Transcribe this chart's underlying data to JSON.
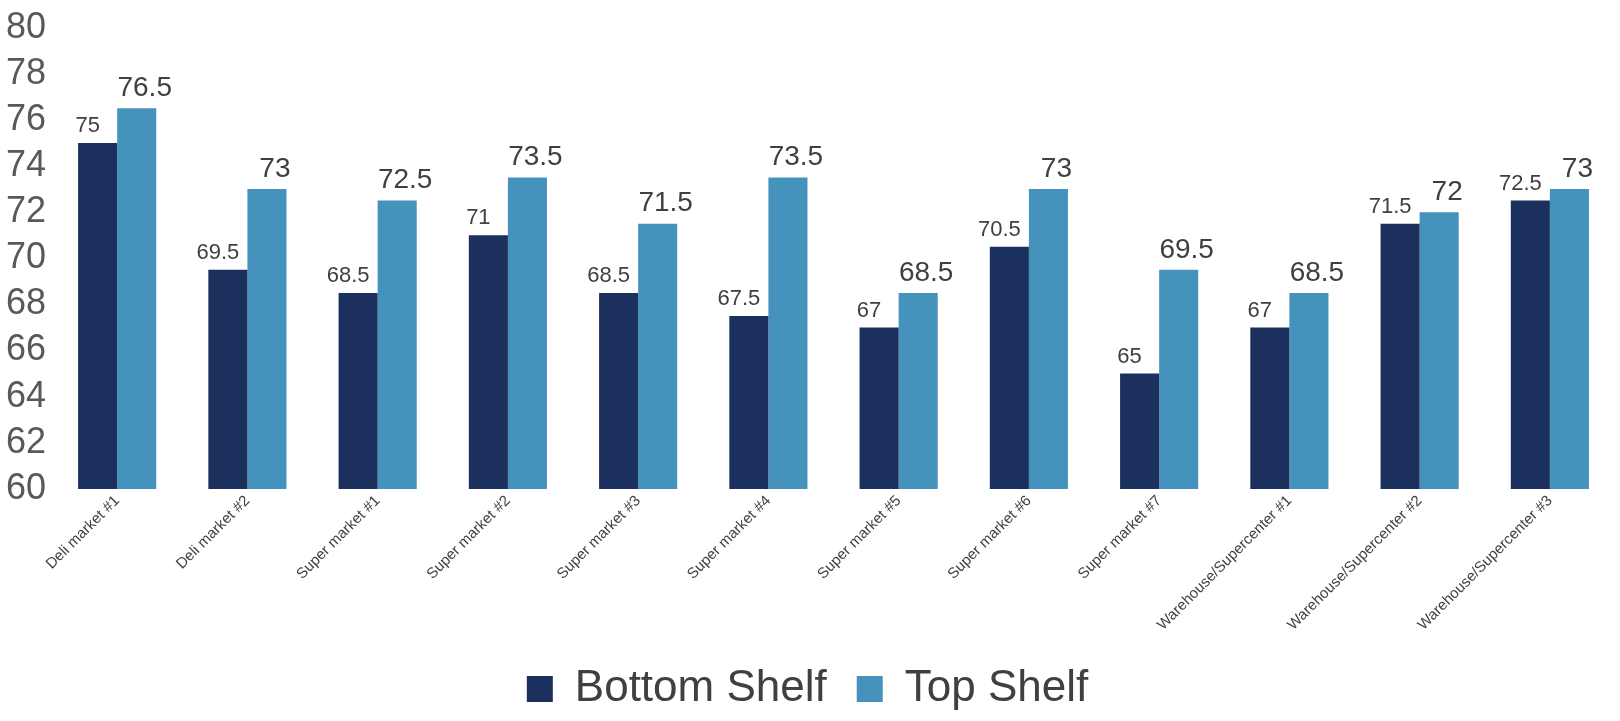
{
  "chart_data": {
    "type": "bar",
    "categories": [
      "Deli market #1",
      "Deli market #2",
      "Super market #1",
      "Super market #2",
      "Super market #3",
      "Super market #4",
      "Super market #5",
      "Super market #6",
      "Super market #7",
      "Warehouse/Supercenter #1",
      "Warehouse/Supercenter #2",
      "Warehouse/Supercenter #3"
    ],
    "series": [
      {
        "name": "Bottom Shelf",
        "color": "#1b305c",
        "values": [
          75,
          69.5,
          68.5,
          71,
          68.5,
          67.5,
          67,
          70.5,
          65,
          67,
          71.5,
          72.5
        ]
      },
      {
        "name": "Top Shelf",
        "color": "#4592bc",
        "values": [
          76.5,
          73,
          72.5,
          73.5,
          71.5,
          73.5,
          68.5,
          73,
          69.5,
          68.5,
          72,
          73
        ]
      }
    ],
    "ylim": [
      60,
      80
    ],
    "yticks": [
      60,
      62,
      64,
      66,
      68,
      70,
      72,
      74,
      76,
      78,
      80
    ],
    "grid": false,
    "legend": "bottom",
    "data_labels": true
  }
}
